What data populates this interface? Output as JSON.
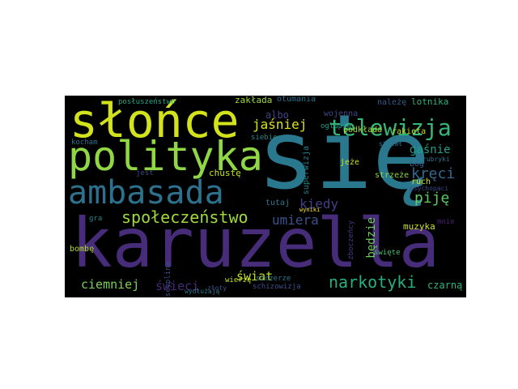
{
  "words": [
    {
      "text": "karuzella",
      "color": "#472c7a"
    },
    {
      "text": "się",
      "color": "#2a788e"
    },
    {
      "text": "słońce",
      "color": "#d2e21b"
    },
    {
      "text": "polityka",
      "color": "#8fd744"
    },
    {
      "text": "ambasada",
      "color": "#2c718e"
    },
    {
      "text": "telewizja",
      "color": "#35b779"
    },
    {
      "text": "społeczeństwo",
      "color": "#9fda3a"
    },
    {
      "text": "narkotyki",
      "color": "#28ae80"
    },
    {
      "text": "jaśniej",
      "color": "#dde318"
    },
    {
      "text": "kręci",
      "color": "#31688e"
    },
    {
      "text": "gaśnie",
      "color": "#1f9e89"
    },
    {
      "text": "piję",
      "color": "#5ec962"
    },
    {
      "text": "umiera",
      "color": "#3b528b"
    },
    {
      "text": "kiedy",
      "color": "#433e85"
    },
    {
      "text": "będzie",
      "color": "#6ccd5a"
    },
    {
      "text": "ciemniej",
      "color": "#7ad151"
    },
    {
      "text": "świeci",
      "color": "#482878"
    },
    {
      "text": "świat",
      "color": "#bddf26"
    },
    {
      "text": "czarną",
      "color": "#31b57b"
    },
    {
      "text": "muzyka",
      "color": "#cde11d"
    },
    {
      "text": "albo",
      "color": "#414487"
    },
    {
      "text": "zakłada",
      "color": "#a0da39"
    },
    {
      "text": "otumania",
      "color": "#2e6f8e"
    },
    {
      "text": "wojenna",
      "color": "#3e4a89"
    },
    {
      "text": "należę",
      "color": "#365c8d"
    },
    {
      "text": "lotnika",
      "color": "#2fb47c"
    },
    {
      "text": "podkłada",
      "color": "#a8db34"
    },
    {
      "text": "rakieta",
      "color": "#c2df23"
    },
    {
      "text": "posłuszeństwo",
      "color": "#22a785"
    },
    {
      "text": "kocham",
      "color": "#2c728e"
    },
    {
      "text": "bombę",
      "color": "#b5de2b"
    },
    {
      "text": "chustę",
      "color": "#cae11f"
    },
    {
      "text": "jest",
      "color": "#3f4788"
    },
    {
      "text": "gra",
      "color": "#25848e"
    },
    {
      "text": "tutaj",
      "color": "#2a778e"
    },
    {
      "text": "superwizja",
      "color": "#26828e"
    },
    {
      "text": "oglupia",
      "color": "#1e9b8a"
    },
    {
      "text": "siebie",
      "color": "#23888e"
    },
    {
      "text": "strzał",
      "color": "#2d708e"
    },
    {
      "text": "jeże",
      "color": "#c8e020"
    },
    {
      "text": "bóg",
      "color": "#34608d"
    },
    {
      "text": "rubryki",
      "color": "#2b758e"
    },
    {
      "text": "ruch",
      "color": "#dae319"
    },
    {
      "text": "psychopaci",
      "color": "#3f4889"
    },
    {
      "text": "strzeże",
      "color": "#8bd646"
    },
    {
      "text": "wyniki",
      "color": "#fde725"
    },
    {
      "text": "mnie",
      "color": "#482071"
    },
    {
      "text": "zboczeńcy",
      "color": "#453882"
    },
    {
      "text": "święte",
      "color": "#4ac16d"
    },
    {
      "text": "dyscyplina",
      "color": "#3d4e8a"
    },
    {
      "text": "wydłużają",
      "color": "#287c8e"
    },
    {
      "text": "wierzę",
      "color": "#c0df25"
    },
    {
      "text": "szczerze",
      "color": "#2a768e"
    },
    {
      "text": "złoty",
      "color": "#3a548c"
    },
    {
      "text": "schizowizja",
      "color": "#3c508b"
    }
  ]
}
